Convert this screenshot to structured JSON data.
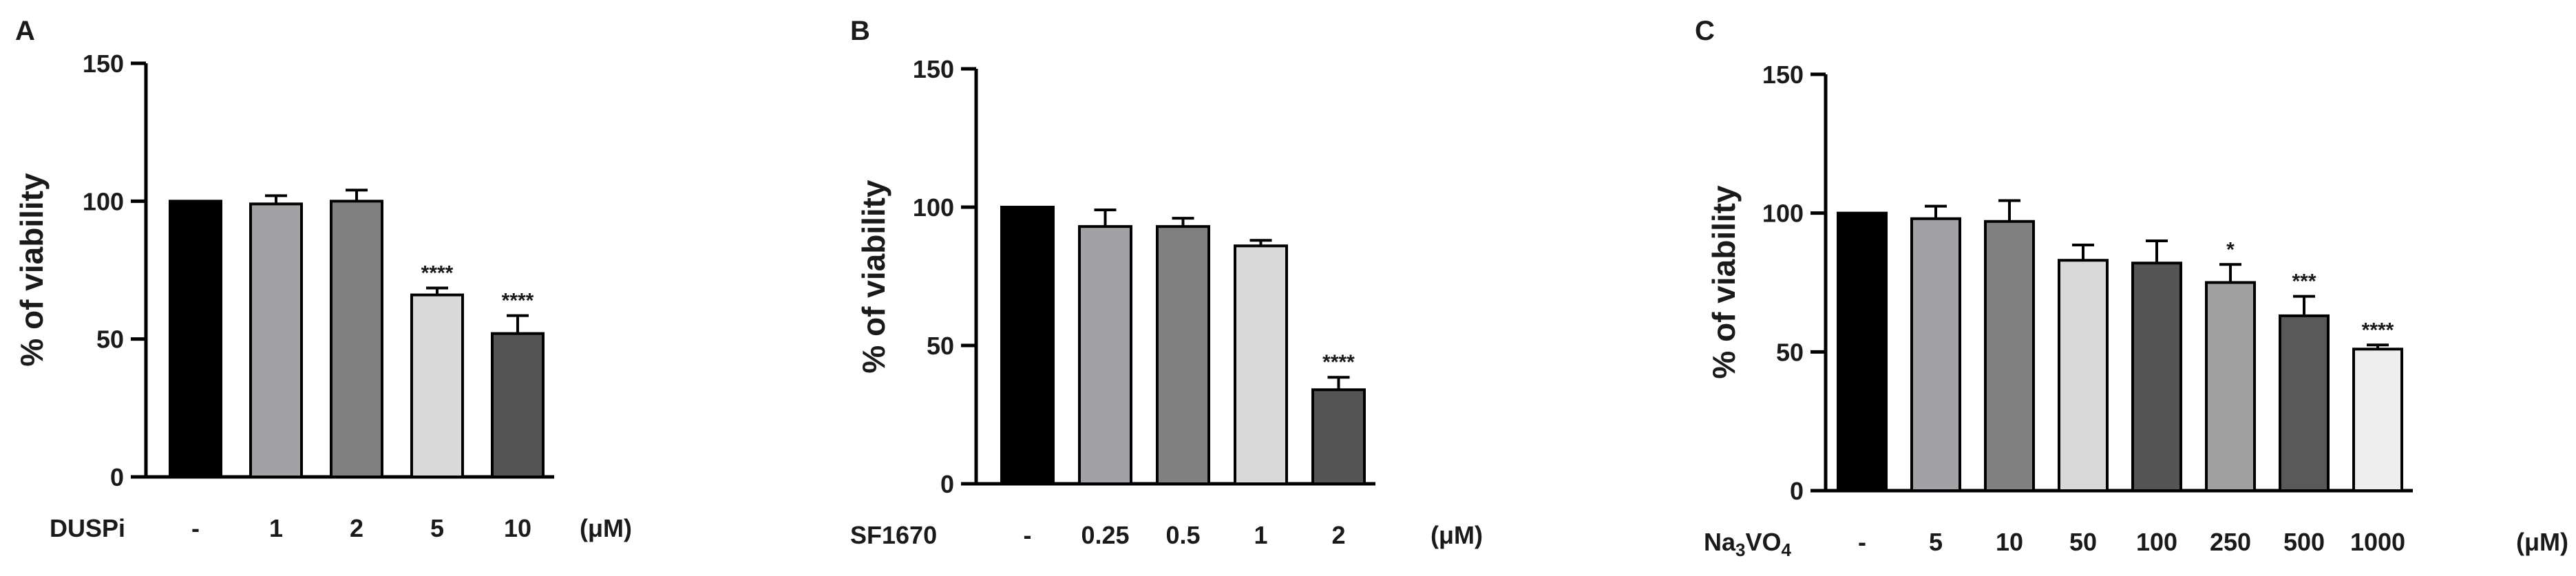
{
  "chart_data": [
    {
      "type": "bar",
      "panel": "A",
      "ylabel": "% of viability",
      "xlabel": "DUSPi",
      "unit": "(μM)",
      "ylim": [
        0,
        150
      ],
      "yticks": [
        "0",
        "50",
        "100",
        "150"
      ],
      "categories": [
        "-",
        "1",
        "2",
        "5",
        "10"
      ],
      "values": [
        100,
        99,
        100,
        66,
        52
      ],
      "errors": [
        0,
        3,
        4,
        2.5,
        6.5
      ],
      "significance": [
        "",
        "",
        "",
        "****",
        "****"
      ],
      "colors": [
        "#000000",
        "#a2a2a6",
        "#808080",
        "#d9d9d9",
        "#555555"
      ]
    },
    {
      "type": "bar",
      "panel": "B",
      "ylabel": "% of viability",
      "xlabel": "SF1670",
      "unit": "(μM)",
      "ylim": [
        0,
        150
      ],
      "yticks": [
        "0",
        "50",
        "100",
        "150"
      ],
      "categories": [
        "-",
        "0.25",
        "0.5",
        "1",
        "2"
      ],
      "values": [
        100,
        93,
        93,
        86,
        34
      ],
      "errors": [
        0,
        6,
        3,
        2,
        4.5
      ],
      "significance": [
        "",
        "",
        "",
        "",
        "****"
      ],
      "colors": [
        "#000000",
        "#a2a2a6",
        "#808080",
        "#d9d9d9",
        "#555555"
      ]
    },
    {
      "type": "bar",
      "panel": "C",
      "ylabel": "% of viability",
      "xlabel": "Na3VO4",
      "unit": "(μM)",
      "ylim": [
        0,
        150
      ],
      "yticks": [
        "0",
        "50",
        "100",
        "150"
      ],
      "categories": [
        "-",
        "5",
        "10",
        "50",
        "100",
        "250",
        "500",
        "1000"
      ],
      "values": [
        100,
        98,
        97,
        83,
        82,
        75,
        63,
        51
      ],
      "errors": [
        0,
        4.5,
        7.5,
        5.5,
        8,
        6.5,
        7,
        1.5
      ],
      "significance": [
        "",
        "",
        "",
        "",
        "",
        "*",
        "***",
        "****"
      ],
      "colors": [
        "#000000",
        "#a2a2a6",
        "#808080",
        "#d9d9d9",
        "#555555",
        "#a0a0a0",
        "#595959",
        "#eeeeee"
      ]
    }
  ]
}
